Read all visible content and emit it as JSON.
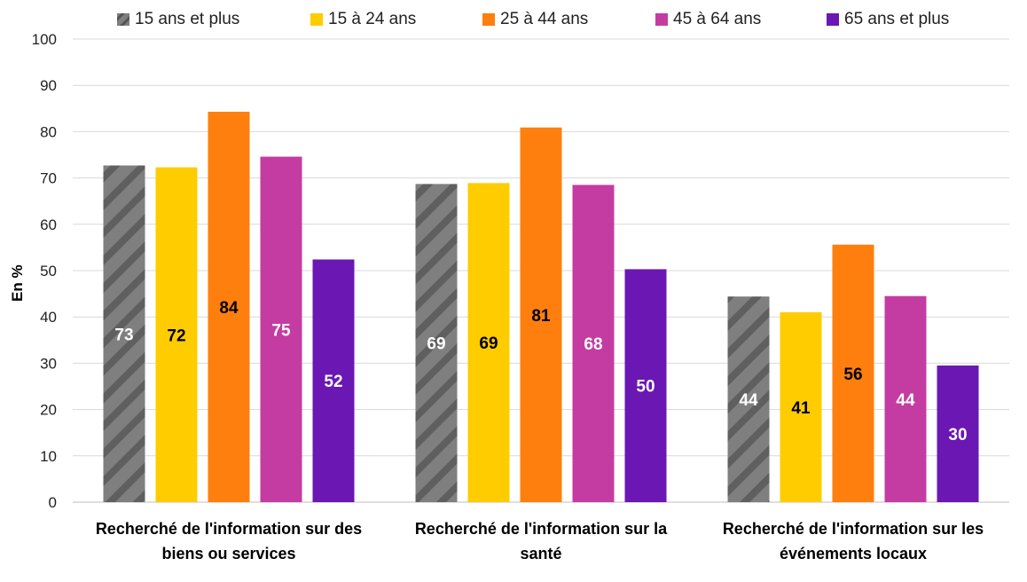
{
  "chart_data": {
    "type": "bar",
    "ylabel": "En %",
    "ylim": [
      0,
      100
    ],
    "yticks": [
      "0",
      "10",
      "20",
      "30",
      "40",
      "50",
      "60",
      "70",
      "80",
      "90",
      "100"
    ],
    "grid": true,
    "legend_position": "top",
    "categories": [
      "Recherché de l'information sur des biens ou services",
      "Recherché de l'information sur la santé",
      "Recherché de l'information sur les événements locaux"
    ],
    "category_lines": [
      [
        "Recherché de l'information sur des",
        "biens ou services"
      ],
      [
        "Recherché de l'information sur la",
        "santé"
      ],
      [
        "Recherché de l'information sur les",
        "événements locaux"
      ]
    ],
    "series": [
      {
        "name": "15 ans et plus",
        "color": "#7f7f7f",
        "pattern": "hatched",
        "label_color": "#ffffff",
        "values": [
          72.7,
          68.7,
          44.4
        ],
        "labels": [
          "73",
          "69",
          "44"
        ]
      },
      {
        "name": "15 à 24 ans",
        "color": "#ffcc00",
        "label_color": "#000000",
        "values": [
          72.3,
          68.9,
          41.0
        ],
        "labels": [
          "72",
          "69",
          "41"
        ]
      },
      {
        "name": "25 à 44 ans",
        "color": "#ff7f0e",
        "label_color": "#000000",
        "values": [
          84.3,
          80.9,
          55.6
        ],
        "labels": [
          "84",
          "81",
          "56"
        ]
      },
      {
        "name": "45 à 64 ans",
        "color": "#c43ca2",
        "label_color": "#ffffff",
        "values": [
          74.6,
          68.5,
          44.5
        ],
        "labels": [
          "75",
          "68",
          "44"
        ]
      },
      {
        "name": "65 ans et plus",
        "color": "#6a17b3",
        "label_color": "#ffffff",
        "values": [
          52.4,
          50.3,
          29.5
        ],
        "labels": [
          "52",
          "50",
          "30"
        ]
      }
    ]
  }
}
